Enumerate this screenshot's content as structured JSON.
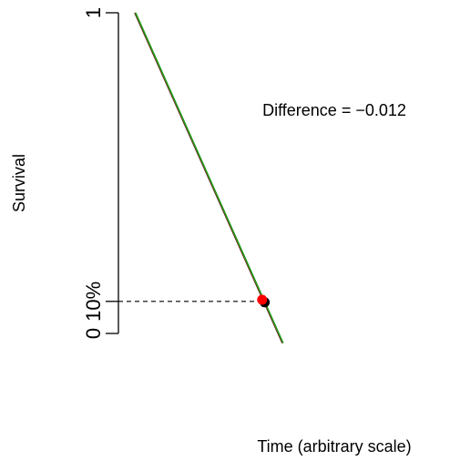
{
  "chart_data": {
    "type": "line",
    "title": "",
    "xlabel": "Time (arbitrary scale)",
    "ylabel": "Survival",
    "ylim": [
      0,
      1
    ],
    "yticks": [
      {
        "value": 0,
        "label": "0"
      },
      {
        "value": 0.1,
        "label": "10%"
      },
      {
        "value": 1,
        "label": "1"
      }
    ],
    "series": [
      {
        "color": "#000000",
        "y_start": 1.0,
        "y_end": -0.03
      },
      {
        "color": "#e41a1c",
        "y_start": 1.0,
        "y_end": -0.03
      },
      {
        "color": "#1a9e1a",
        "y_start": 1.0,
        "y_end": -0.03
      }
    ],
    "reference_y": 0.1,
    "markers": [
      {
        "color": "#000000",
        "y": 0.1
      },
      {
        "color": "#ff0000",
        "y": 0.105
      }
    ],
    "annotation": "Difference = −0.012"
  }
}
